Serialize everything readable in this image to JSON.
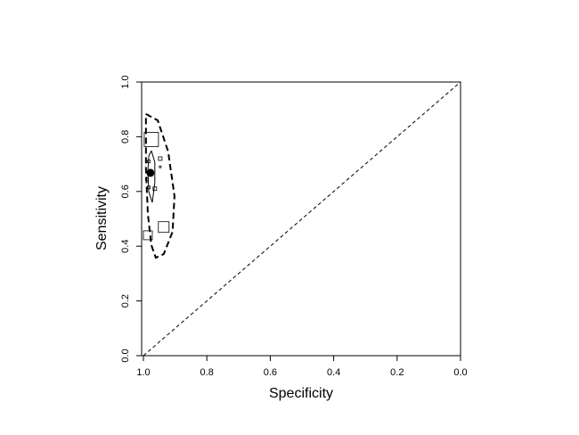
{
  "chart_data": {
    "type": "sroc",
    "x_label": "Specificity",
    "y_label": "Sensitivity",
    "xlim": [
      1.0,
      0.0
    ],
    "ylim": [
      0.0,
      1.0
    ],
    "xticks": [
      {
        "value": 1.0,
        "label": "1.0"
      },
      {
        "value": 0.8,
        "label": "0.8"
      },
      {
        "value": 0.6,
        "label": "0.6"
      },
      {
        "value": 0.4,
        "label": "0.4"
      },
      {
        "value": 0.2,
        "label": "0.2"
      },
      {
        "value": 0.0,
        "label": "0.0"
      }
    ],
    "yticks": [
      {
        "value": 0.0,
        "label": "0.0"
      },
      {
        "value": 0.2,
        "label": "0.2"
      },
      {
        "value": 0.4,
        "label": "0.4"
      },
      {
        "value": 0.6,
        "label": "0.6"
      },
      {
        "value": 0.8,
        "label": "0.8"
      },
      {
        "value": 1.0,
        "label": "1.0"
      }
    ],
    "studies": {
      "x": [
        0.975,
        0.936,
        0.986,
        0.947,
        0.964,
        0.983,
        0.989,
        0.983,
        0.947
      ],
      "y": [
        0.79,
        0.47,
        0.44,
        0.72,
        0.61,
        0.615,
        0.645,
        0.71,
        0.69
      ],
      "sizes": [
        16,
        12,
        10,
        4,
        4,
        3,
        3,
        3,
        2
      ]
    },
    "summary": {
      "x": 0.978,
      "y": 0.668
    },
    "confidence_region": {
      "x": [
        0.975,
        0.964,
        0.964,
        0.972,
        0.983,
        0.986,
        0.983,
        0.975
      ],
      "y": [
        0.749,
        0.707,
        0.632,
        0.56,
        0.599,
        0.674,
        0.73,
        0.749
      ]
    },
    "prediction_region": {
      "x": [
        0.992,
        0.955,
        0.922,
        0.902,
        0.908,
        0.936,
        0.961,
        0.975,
        0.986,
        0.992,
        0.992,
        0.992
      ],
      "y": [
        0.883,
        0.86,
        0.746,
        0.583,
        0.453,
        0.371,
        0.358,
        0.404,
        0.518,
        0.681,
        0.827,
        0.883
      ]
    },
    "reference_line": {
      "x": [
        1.0,
        0.0
      ],
      "y": [
        0.0,
        1.0
      ]
    }
  }
}
